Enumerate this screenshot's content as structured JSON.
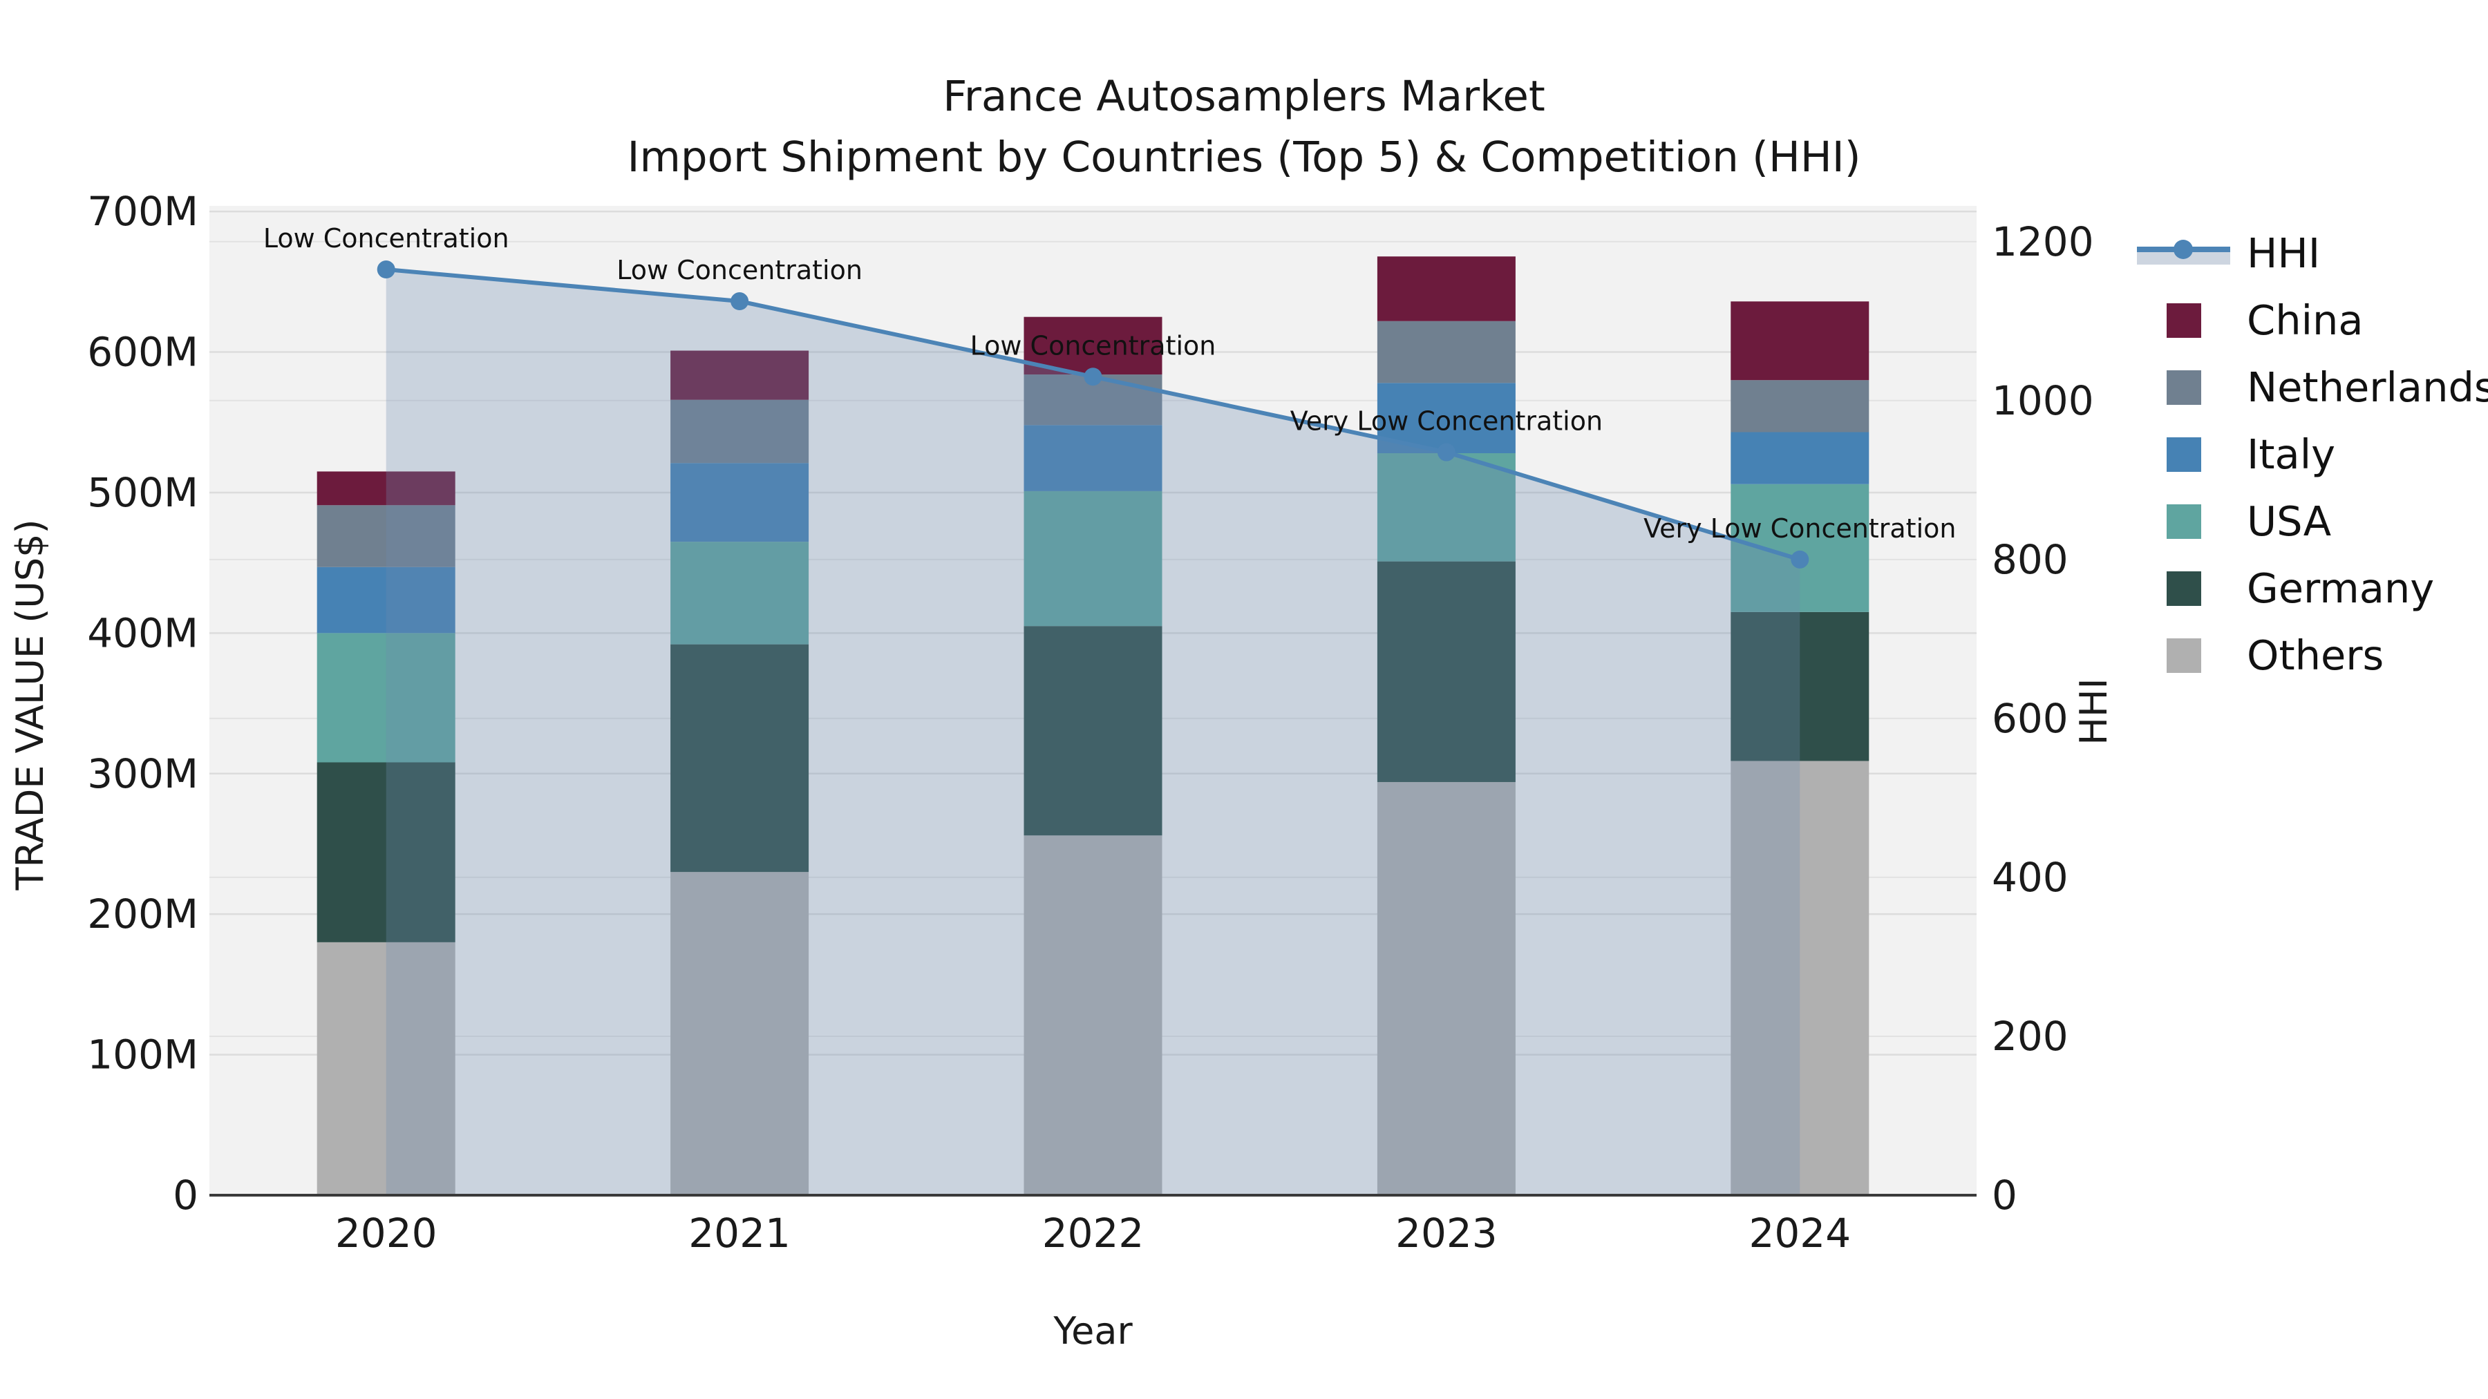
{
  "title": {
    "line1": "France Autosamplers Market",
    "line2": "Import Shipment by Countries (Top 5) & Competition (HHI)"
  },
  "chart_data": {
    "type": "combo-stacked-bar-line",
    "categories": [
      "2020",
      "2021",
      "2022",
      "2023",
      "2024"
    ],
    "x_axis": {
      "label": "Year"
    },
    "left_axis": {
      "label": "TRADE VALUE (US$)",
      "tick_labels": [
        "0",
        "100M",
        "200M",
        "300M",
        "400M",
        "500M",
        "600M",
        "700M"
      ],
      "tick_values": [
        0,
        100,
        200,
        300,
        400,
        500,
        600,
        700
      ],
      "max": 704
    },
    "right_axis": {
      "label": "HHI",
      "tick_labels": [
        "0",
        "200",
        "400",
        "600",
        "800",
        "1000",
        "1200"
      ],
      "tick_values": [
        0,
        200,
        400,
        600,
        800,
        1000,
        1200
      ],
      "max": 1245
    },
    "bar_series": [
      {
        "name": "Others",
        "color": "#B0B0B0",
        "values": [
          180,
          230,
          256,
          294,
          309
        ]
      },
      {
        "name": "Germany",
        "color": "#2F4F4A",
        "values": [
          128,
          162,
          149,
          157,
          106
        ]
      },
      {
        "name": "USA",
        "color": "#5FA5A0",
        "values": [
          92,
          73,
          96,
          77,
          91
        ]
      },
      {
        "name": "Italy",
        "color": "#4682B4",
        "values": [
          47,
          56,
          47,
          50,
          37
        ]
      },
      {
        "name": "Netherlands",
        "color": "#708090",
        "values": [
          44,
          45,
          36,
          44,
          37
        ]
      },
      {
        "name": "China",
        "color": "#6C1B3D",
        "values": [
          24,
          35,
          41,
          46,
          56
        ]
      }
    ],
    "bar_totals": [
      515,
      601,
      625,
      668,
      636
    ],
    "line_series": {
      "name": "HHI",
      "color": "#4C84B6",
      "values": [
        1165,
        1125,
        1030,
        935,
        800
      ],
      "area_fill_color": "#6E8AAF",
      "area_fill_opacity": 0.3
    },
    "annotations": [
      {
        "year": "2020",
        "text": "Low Concentration"
      },
      {
        "year": "2021",
        "text": "Low Concentration"
      },
      {
        "year": "2022",
        "text": "Low Concentration"
      },
      {
        "year": "2023",
        "text": "Very Low Concentration"
      },
      {
        "year": "2024",
        "text": "Very Low Concentration"
      }
    ],
    "legend": {
      "order": [
        "HHI",
        "China",
        "Netherlands",
        "Italy",
        "USA",
        "Germany",
        "Others"
      ],
      "hhi_band_color": "#CDD5E0"
    },
    "style": {
      "plot_bg": "#F2F2F2",
      "grid_left_color": "#DCDCDC",
      "grid_right_color": "#E2E2E2",
      "axis_line_color": "#3A3A3A",
      "text_color": "#1A1A1A"
    }
  }
}
